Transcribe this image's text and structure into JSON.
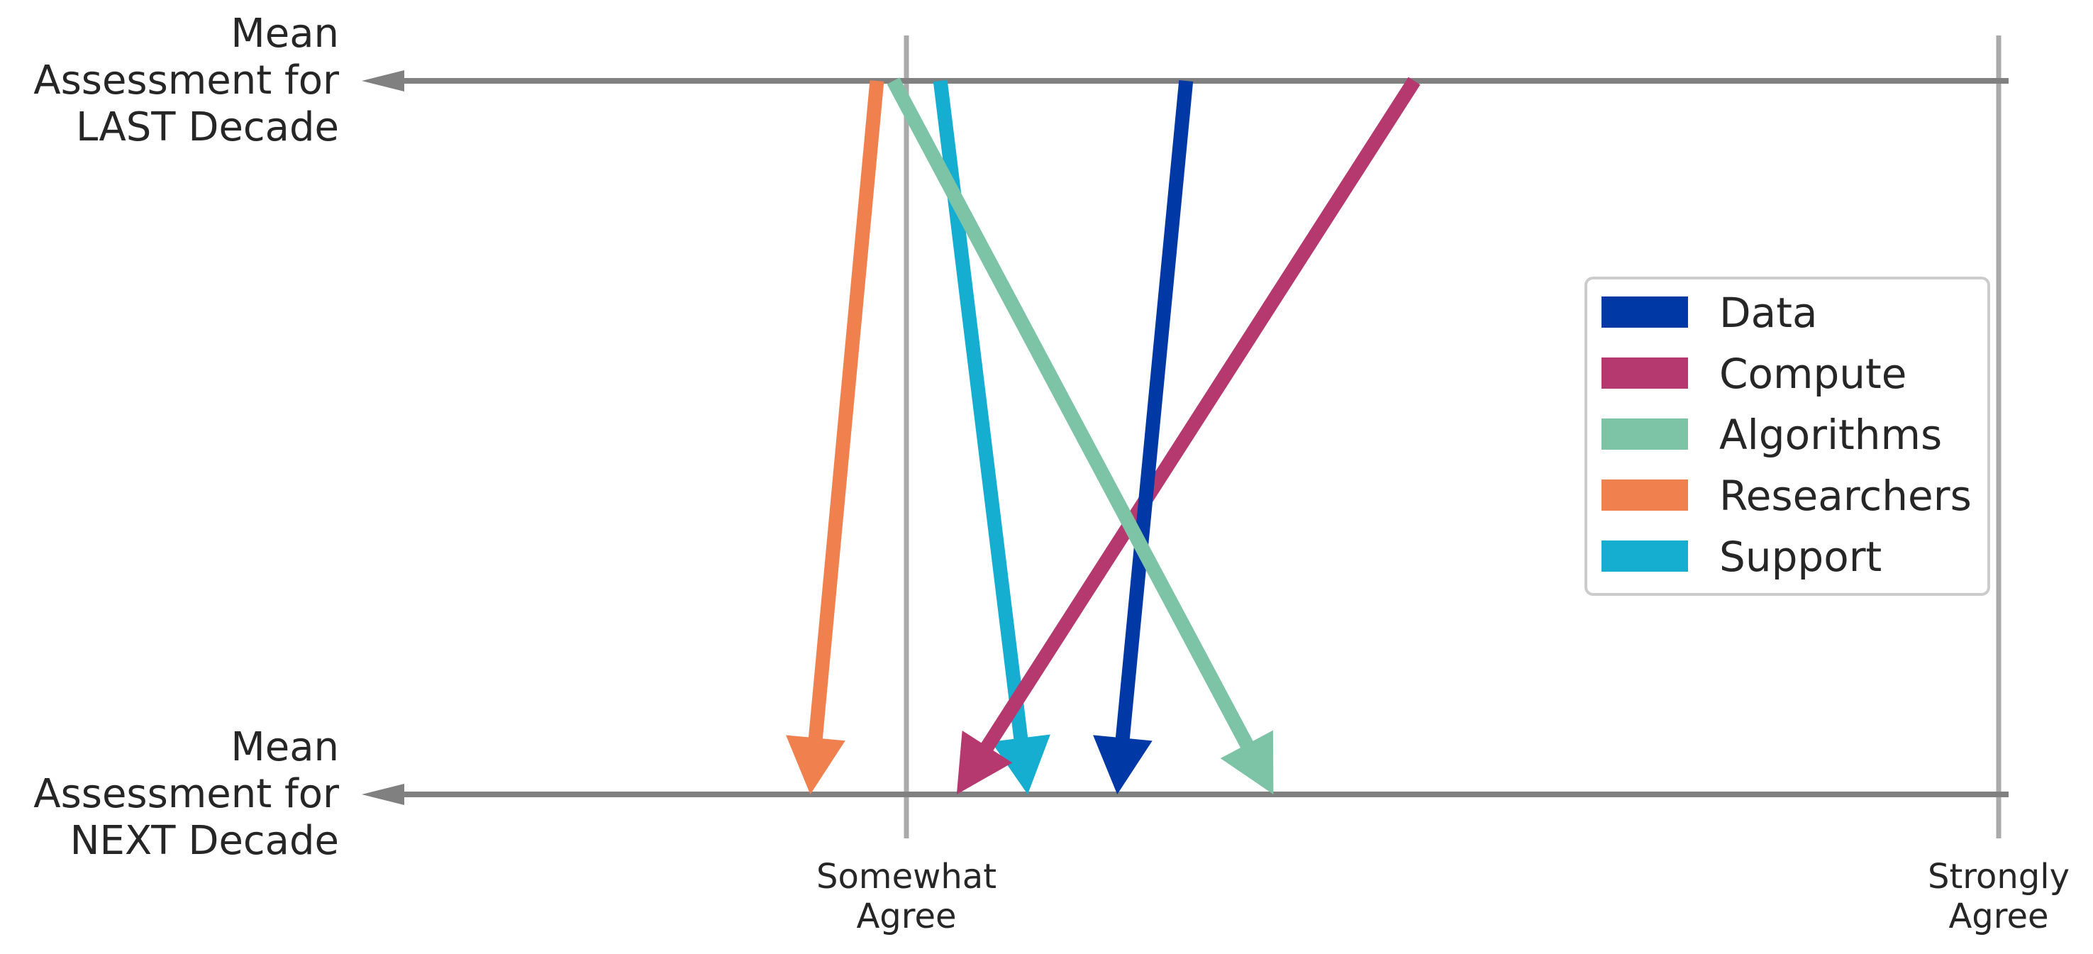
{
  "chart_data": {
    "type": "arrow",
    "rows": [
      {
        "key": "last",
        "label_lines": [
          "Mean",
          "Assessment for",
          "LAST Decade"
        ]
      },
      {
        "key": "next",
        "label_lines": [
          "Mean",
          "Assessment for",
          "NEXT Decade"
        ]
      }
    ],
    "x_ticks": [
      {
        "value": 0,
        "label_lines": [
          "Somewhat",
          "Agree"
        ]
      },
      {
        "value": 1,
        "label_lines": [
          "Strongly",
          "Agree"
        ]
      }
    ],
    "xlim": [
      -0.5,
      1.0
    ],
    "series": [
      {
        "name": "Data",
        "color": "#0039a6",
        "last": 0.256,
        "next": 0.193
      },
      {
        "name": "Compute",
        "color": "#b5386f",
        "last": 0.465,
        "next": 0.046
      },
      {
        "name": "Algorithms",
        "color": "#7dc4a6",
        "last": -0.012,
        "next": 0.336
      },
      {
        "name": "Researchers",
        "color": "#f0814f",
        "last": -0.027,
        "next": -0.088
      },
      {
        "name": "Support",
        "color": "#15aed0",
        "last": 0.031,
        "next": 0.111
      }
    ],
    "draw_order": [
      "Researchers",
      "Support",
      "Compute",
      "Data",
      "Algorithms"
    ],
    "legend_position": "center-right",
    "axis_color": "#808080",
    "grid_color": "#aaaaaa"
  }
}
